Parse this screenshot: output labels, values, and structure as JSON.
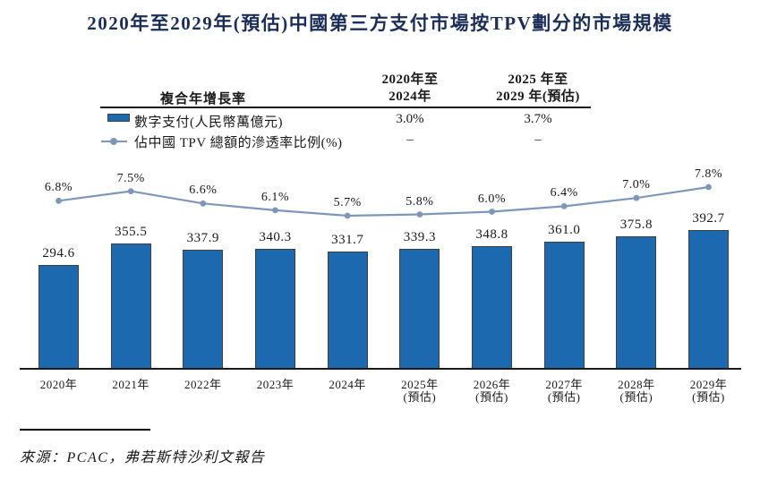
{
  "title": "2020年至2029年(預估)中國第三方支付市場按TPV劃分的市場規模",
  "legend_table": {
    "row_header": "複合年增長率",
    "col1_header_line1": "2020年至",
    "col1_header_line2": "2024年",
    "col2_header_line1": "2025 年至",
    "col2_header_line2": "2029 年(預估)",
    "rows": [
      {
        "marker": "bar-swatch",
        "label": "數字支付(人民幣萬億元)",
        "col1": "3.0%",
        "col2": "3.7%"
      },
      {
        "marker": "line-marker",
        "label": "佔中國 TPV 總額的滲透率比例(%)",
        "col1": "–",
        "col2": "–"
      }
    ]
  },
  "chart_data": {
    "type": "bar",
    "title": "2020年至2029年(預估)中國第三方支付市場按TPV劃分的市場規模",
    "categories": [
      "2020年",
      "2021年",
      "2022年",
      "2023年",
      "2024年",
      "2025年(預估)",
      "2026年(預估)",
      "2027年(預估)",
      "2028年(預估)",
      "2029年(預估)"
    ],
    "series": [
      {
        "name": "數字支付(人民幣萬億元)",
        "type": "bar",
        "unit": "人民幣萬億元",
        "values": [
          294.6,
          355.5,
          337.9,
          340.3,
          331.7,
          339.3,
          348.8,
          361.0,
          375.8,
          392.7
        ]
      },
      {
        "name": "佔中國TPV總額的滲透率比例(%)",
        "type": "line",
        "unit": "%",
        "values": [
          6.8,
          7.5,
          6.6,
          6.1,
          5.7,
          5.8,
          6.0,
          6.4,
          7.0,
          7.8
        ]
      }
    ],
    "cagr": {
      "label": "複合年增長率",
      "columns": [
        "2020年至2024年",
        "2025年至2029年(預估)"
      ],
      "digital_payment": [
        "3.0%",
        "3.7%"
      ],
      "penetration_ratio": [
        "–",
        "–"
      ]
    },
    "value_labels": true,
    "grid": false,
    "legend_position": "top",
    "xlabel": "",
    "ylabel": ""
  },
  "source": "來源：PCAC，弗若斯特沙利文報告",
  "colors": {
    "bar": "#1c69b0",
    "bar_border": "#404040",
    "line": "#7e97b8",
    "title": "#1b2e58",
    "text": "#1a1a1a"
  }
}
